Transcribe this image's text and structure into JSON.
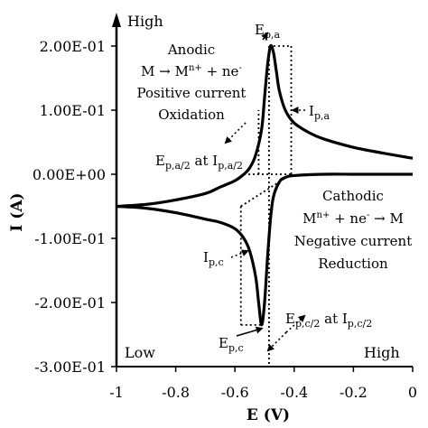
{
  "chart_data": {
    "type": "line",
    "xlabel": "E (V)",
    "ylabel": "I (A)",
    "xlim": [
      -1,
      0
    ],
    "ylim": [
      -0.3,
      0.2
    ],
    "x_ticks": [
      "-1",
      "-0.8",
      "-0.6",
      "-0.4",
      "-0.2",
      "0"
    ],
    "y_ticks": [
      "-3.00E-01",
      "-2.00E-01",
      "-1.00E-01",
      "0.00E+00",
      "1.00E-01",
      "2.00E-01"
    ],
    "grid": false,
    "series": [
      {
        "x": [
          -1.0,
          -0.9,
          -0.8,
          -0.7,
          -0.65,
          -0.6,
          -0.57,
          -0.55,
          -0.53,
          -0.51,
          -0.5,
          -0.49,
          -0.48,
          -0.47,
          -0.46,
          -0.45,
          -0.43,
          -0.4,
          -0.35,
          -0.3,
          -0.2,
          -0.1,
          0.0
        ],
        "y": [
          -0.05,
          -0.047,
          -0.04,
          -0.03,
          -0.02,
          -0.01,
          0.0,
          0.01,
          0.03,
          0.07,
          0.12,
          0.17,
          0.2,
          0.19,
          0.16,
          0.13,
          0.1,
          0.08,
          0.065,
          0.055,
          0.042,
          0.033,
          0.025
        ]
      },
      {
        "x": [
          0.0,
          -0.1,
          -0.2,
          -0.3,
          -0.4,
          -0.43,
          -0.45,
          -0.47,
          -0.48,
          -0.49,
          -0.5,
          -0.51,
          -0.52,
          -0.53,
          -0.55,
          -0.57,
          -0.6,
          -0.65,
          -0.7,
          -0.8,
          -0.9,
          -1.0
        ],
        "y": [
          0.0,
          0.0,
          0.0,
          0.0,
          -0.002,
          -0.005,
          -0.012,
          -0.035,
          -0.07,
          -0.13,
          -0.2,
          -0.235,
          -0.2,
          -0.16,
          -0.12,
          -0.1,
          -0.085,
          -0.075,
          -0.07,
          -0.06,
          -0.053,
          -0.05
        ]
      }
    ],
    "corner_labels": {
      "top_left": "High",
      "bottom_left": "Low",
      "bottom_right": "High"
    },
    "annotations": {
      "epa": {
        "main": "E",
        "sub": "p,a"
      },
      "ipa": {
        "main": "I",
        "sub": "p,a"
      },
      "epa2": {
        "main": "E",
        "sub": "p,a/2",
        "mid": " at I",
        "sub2": "p,a/2"
      },
      "anodic": {
        "line1": "Anodic",
        "line2_a": "M → M",
        "line2_sup": "n+",
        "line2_b": " + ne",
        "line2_sup2": "-",
        "line3": "Positive current",
        "line4": "Oxidation"
      },
      "cathodic": {
        "line1": "Cathodic",
        "line2_a": "M",
        "line2_sup": "n+",
        "line2_b": " + ne",
        "line2_sup2": "-",
        "line2_c": " → M",
        "line3": "Negative current",
        "line4": "Reduction"
      },
      "ipc": {
        "main": "I",
        "sub": "p,c"
      },
      "epc": {
        "main": "E",
        "sub": "p,c"
      },
      "epc2": {
        "main": "E",
        "sub": "p,c/2",
        "mid": " at I",
        "sub2": "p,c/2"
      }
    },
    "markers": {
      "epa_x": -0.485,
      "ipa_y": 0.2,
      "epc_x": -0.51,
      "ipc_y": -0.235,
      "ep_a2_x": -0.52,
      "ip_a2_y": 0.1,
      "ep_c2_x": -0.49,
      "ip_c2_y": -0.118
    }
  }
}
